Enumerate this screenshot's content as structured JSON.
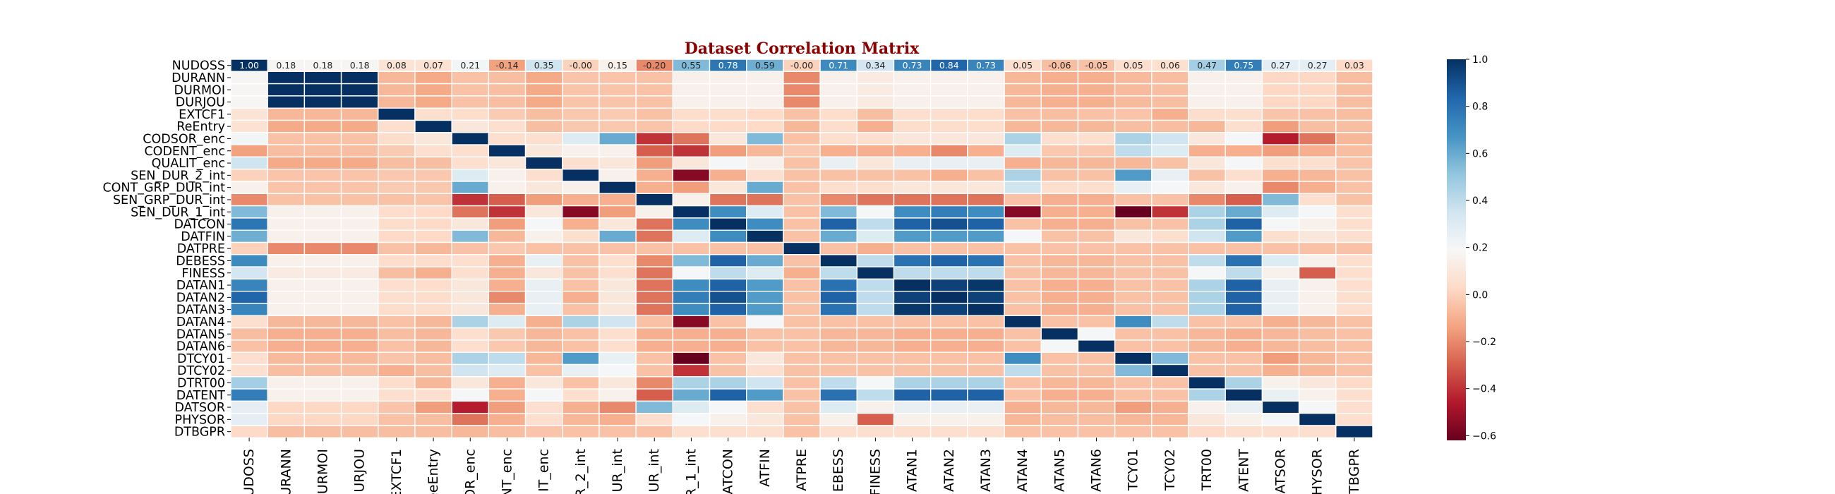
{
  "chart_data": {
    "type": "heatmap",
    "title": "Dataset Correlation Matrix",
    "title_color": "#8b0000",
    "colormap": "RdBu",
    "vmin": -0.62,
    "vmax": 1.0,
    "colorbar_ticks": [
      -0.6,
      -0.4,
      -0.2,
      0.0,
      0.2,
      0.4,
      0.6,
      0.8,
      1.0
    ],
    "colorbar_tick_labels": [
      "−0.6",
      "−0.4",
      "−0.2",
      "0.0",
      "0.2",
      "0.4",
      "0.6",
      "0.8",
      "1.0"
    ],
    "row_labels": [
      "NUDOSS",
      "DURANN",
      "DURMOI",
      "DURJOU",
      "EXTCF1",
      "ReEntry",
      "CODSOR_enc",
      "CODENT_enc",
      "QUALIT_enc",
      "SEN_DUR_2_int",
      "CONT_GRP_DUR_int",
      "SEN_GRP_DUR_int",
      "SEN_DUR_1_int",
      "DATCON",
      "DATFIN",
      "DATPRE",
      "DEBESS",
      "FINESS",
      "DATAN1",
      "DATAN2",
      "DATAN3",
      "DATAN4",
      "DATAN5",
      "DATAN6",
      "DTCY01",
      "DTCY02",
      "DTRT00",
      "DATENT",
      "DATSOR",
      "PHYSOR",
      "DTBGPR"
    ],
    "column_labels": [
      "UDOSS",
      "URANN",
      "URMOI",
      "URJOU",
      "EXTCF1",
      "eeEntry",
      "OR_enc",
      "NT_enc",
      "IT_enc",
      "R_2_int",
      "UR_int",
      "UR_int",
      "R_1_int",
      "ATCON",
      "ATFIN",
      "ATPRE",
      "EBESS",
      "FINESS",
      "ATAN1",
      "ATAN2",
      "ATAN3",
      "ATAN4",
      "ATAN5",
      "ATAN6",
      "TCY01",
      "TCY02",
      "TRT00",
      "ATENT",
      "ATSOR",
      "HYSOR",
      "TBGPR"
    ],
    "annotated_row": 0,
    "annotation_labels": [
      "1.00",
      "0.18",
      "0.18",
      "0.18",
      "0.08",
      "0.07",
      "0.21",
      "-0.14",
      "0.35",
      "-0.00",
      "0.15",
      "-0.20",
      "0.55",
      "0.78",
      "0.59",
      "-0.00",
      "0.71",
      "0.34",
      "0.73",
      "0.84",
      "0.73",
      "0.05",
      "-0.06",
      "-0.05",
      "0.05",
      "0.06",
      "0.47",
      "0.75",
      "0.27",
      "0.27",
      "0.03"
    ],
    "values": [
      [
        1.0,
        0.18,
        0.18,
        0.18,
        0.08,
        0.07,
        0.21,
        -0.14,
        0.35,
        -0.0,
        0.15,
        -0.2,
        0.55,
        0.78,
        0.59,
        -0.0,
        0.71,
        0.34,
        0.73,
        0.84,
        0.73,
        0.05,
        -0.06,
        -0.05,
        0.05,
        0.06,
        0.47,
        0.75,
        0.27,
        0.27,
        0.03
      ],
      [
        0.18,
        1.0,
        1.0,
        1.0,
        -0.08,
        -0.12,
        -0.05,
        -0.06,
        -0.12,
        -0.04,
        -0.04,
        -0.05,
        0.15,
        0.15,
        0.15,
        -0.2,
        0.15,
        0.12,
        0.15,
        0.15,
        0.15,
        -0.08,
        -0.1,
        -0.1,
        -0.07,
        -0.06,
        0.15,
        0.15,
        0.02,
        0.02,
        -0.06
      ],
      [
        0.18,
        1.0,
        1.0,
        1.0,
        -0.08,
        -0.12,
        -0.05,
        -0.06,
        -0.12,
        -0.04,
        -0.04,
        -0.05,
        0.15,
        0.15,
        0.15,
        -0.2,
        0.15,
        0.12,
        0.15,
        0.15,
        0.15,
        -0.08,
        -0.1,
        -0.1,
        -0.07,
        -0.06,
        0.15,
        0.15,
        0.02,
        0.02,
        -0.06
      ],
      [
        0.18,
        1.0,
        1.0,
        1.0,
        -0.08,
        -0.12,
        -0.05,
        -0.06,
        -0.12,
        -0.04,
        -0.04,
        -0.05,
        0.15,
        0.15,
        0.15,
        -0.2,
        0.15,
        0.12,
        0.15,
        0.15,
        0.15,
        -0.08,
        -0.1,
        -0.1,
        -0.07,
        -0.06,
        0.15,
        0.15,
        0.02,
        0.02,
        -0.06
      ],
      [
        0.08,
        -0.08,
        -0.08,
        -0.08,
        1.0,
        0.05,
        0.04,
        -0.02,
        -0.06,
        -0.03,
        -0.02,
        -0.05,
        0.04,
        0.04,
        0.03,
        -0.05,
        0.04,
        -0.06,
        0.05,
        0.05,
        0.04,
        -0.05,
        -0.06,
        -0.05,
        -0.04,
        -0.1,
        0.04,
        0.05,
        -0.04,
        -0.05,
        -0.06
      ],
      [
        0.07,
        -0.12,
        -0.12,
        -0.12,
        0.05,
        1.0,
        0.1,
        0.05,
        -0.06,
        -0.03,
        -0.03,
        -0.04,
        0.03,
        0.03,
        0.03,
        -0.08,
        0.04,
        -0.1,
        0.04,
        0.04,
        0.04,
        -0.08,
        -0.08,
        -0.08,
        -0.06,
        -0.06,
        -0.08,
        0.05,
        -0.15,
        -0.06,
        -0.06
      ],
      [
        0.21,
        -0.05,
        -0.05,
        -0.05,
        0.04,
        0.1,
        1.0,
        0.05,
        0.05,
        0.3,
        0.6,
        -0.4,
        -0.25,
        0.1,
        0.55,
        -0.05,
        0.05,
        0.05,
        0.1,
        0.1,
        0.1,
        0.45,
        0.05,
        0.05,
        0.45,
        0.35,
        0.1,
        0.2,
        -0.45,
        -0.25,
        -0.08
      ],
      [
        -0.14,
        -0.06,
        -0.06,
        -0.06,
        -0.02,
        0.05,
        0.05,
        1.0,
        0.1,
        0.15,
        0.15,
        -0.3,
        -0.4,
        -0.15,
        -0.08,
        -0.03,
        -0.1,
        -0.1,
        -0.1,
        -0.2,
        -0.1,
        0.3,
        -0.03,
        -0.03,
        0.4,
        0.3,
        -0.1,
        -0.1,
        -0.15,
        -0.1,
        -0.06
      ],
      [
        0.35,
        -0.12,
        -0.12,
        -0.12,
        -0.06,
        -0.06,
        0.05,
        0.1,
        1.0,
        0.05,
        0.1,
        -0.15,
        0.1,
        0.2,
        0.15,
        -0.05,
        0.25,
        0.1,
        0.25,
        0.25,
        0.25,
        -0.1,
        -0.08,
        -0.08,
        -0.08,
        -0.05,
        0.1,
        0.2,
        0.05,
        0.05,
        -0.04
      ],
      [
        -0.0,
        -0.04,
        -0.04,
        -0.04,
        -0.03,
        -0.03,
        0.3,
        0.15,
        0.05,
        1.0,
        0.15,
        -0.1,
        -0.55,
        -0.1,
        0.05,
        -0.05,
        -0.05,
        -0.05,
        -0.05,
        -0.1,
        -0.05,
        0.45,
        -0.05,
        -0.05,
        0.65,
        0.25,
        -0.05,
        0.05,
        -0.1,
        -0.08,
        -0.05
      ],
      [
        0.15,
        -0.04,
        -0.04,
        -0.04,
        -0.02,
        -0.03,
        0.6,
        0.15,
        0.1,
        0.15,
        1.0,
        -0.1,
        -0.15,
        0.1,
        0.6,
        -0.05,
        0.05,
        0.05,
        0.1,
        0.1,
        0.1,
        0.35,
        0.05,
        0.05,
        0.25,
        0.2,
        0.1,
        0.15,
        -0.2,
        -0.1,
        -0.05
      ],
      [
        -0.2,
        -0.05,
        -0.05,
        -0.05,
        -0.05,
        -0.04,
        -0.4,
        -0.3,
        -0.15,
        -0.1,
        -0.1,
        1.0,
        0.15,
        -0.25,
        -0.25,
        -0.05,
        -0.2,
        -0.25,
        -0.25,
        -0.25,
        -0.25,
        -0.05,
        -0.1,
        -0.1,
        -0.05,
        -0.05,
        -0.2,
        -0.3,
        0.55,
        0.05,
        -0.05
      ],
      [
        0.55,
        0.15,
        0.15,
        0.15,
        0.04,
        0.03,
        -0.25,
        -0.4,
        0.1,
        -0.55,
        -0.15,
        0.15,
        1.0,
        0.7,
        0.3,
        -0.05,
        0.55,
        0.2,
        0.7,
        0.75,
        0.7,
        -0.55,
        -0.1,
        -0.1,
        -0.62,
        -0.4,
        0.45,
        0.6,
        0.3,
        0.2,
        0.05
      ],
      [
        0.78,
        0.15,
        0.15,
        0.15,
        0.04,
        0.03,
        0.1,
        -0.15,
        0.2,
        -0.1,
        0.1,
        -0.25,
        0.7,
        1.0,
        0.7,
        -0.05,
        0.85,
        0.4,
        0.85,
        0.9,
        0.85,
        -0.05,
        -0.1,
        -0.1,
        -0.05,
        -0.05,
        0.45,
        0.85,
        0.2,
        0.15,
        0.05
      ],
      [
        0.59,
        0.15,
        0.15,
        0.15,
        0.03,
        0.03,
        0.55,
        -0.08,
        0.15,
        0.05,
        0.6,
        -0.25,
        0.3,
        0.7,
        1.0,
        -0.05,
        0.6,
        0.3,
        0.65,
        0.65,
        0.65,
        0.2,
        -0.05,
        -0.05,
        0.1,
        0.05,
        0.35,
        0.65,
        0.05,
        0.1,
        0.05
      ],
      [
        -0.0,
        -0.2,
        -0.2,
        -0.2,
        -0.05,
        -0.08,
        -0.05,
        -0.03,
        -0.05,
        -0.05,
        -0.05,
        -0.05,
        -0.05,
        -0.05,
        -0.05,
        1.0,
        -0.05,
        -0.1,
        -0.05,
        -0.05,
        -0.05,
        -0.05,
        -0.05,
        -0.05,
        -0.05,
        -0.05,
        -0.05,
        -0.05,
        -0.05,
        -0.05,
        -0.05
      ],
      [
        0.71,
        0.15,
        0.15,
        0.15,
        0.04,
        0.04,
        0.05,
        -0.1,
        0.25,
        -0.05,
        0.05,
        -0.2,
        0.55,
        0.85,
        0.6,
        -0.05,
        1.0,
        0.4,
        0.8,
        0.85,
        0.8,
        -0.05,
        -0.08,
        -0.08,
        -0.05,
        -0.05,
        0.4,
        0.8,
        0.3,
        0.15,
        0.05
      ],
      [
        0.34,
        0.12,
        0.12,
        0.12,
        -0.06,
        -0.1,
        0.05,
        -0.1,
        0.1,
        -0.05,
        0.05,
        -0.25,
        0.2,
        0.4,
        0.3,
        -0.1,
        0.4,
        1.0,
        0.4,
        0.4,
        0.4,
        -0.05,
        -0.08,
        -0.08,
        -0.05,
        -0.05,
        0.2,
        0.4,
        0.15,
        -0.3,
        0.05
      ],
      [
        0.73,
        0.15,
        0.15,
        0.15,
        0.05,
        0.04,
        0.1,
        -0.1,
        0.25,
        -0.05,
        0.1,
        -0.25,
        0.7,
        0.85,
        0.65,
        -0.05,
        0.8,
        0.4,
        1.0,
        0.95,
        0.98,
        -0.05,
        -0.1,
        -0.1,
        -0.05,
        -0.05,
        0.45,
        0.85,
        0.25,
        0.15,
        0.05
      ],
      [
        0.84,
        0.15,
        0.15,
        0.15,
        0.05,
        0.04,
        0.1,
        -0.2,
        0.25,
        -0.1,
        0.1,
        -0.25,
        0.75,
        0.9,
        0.65,
        -0.05,
        0.85,
        0.4,
        0.95,
        1.0,
        0.95,
        -0.05,
        -0.1,
        -0.1,
        -0.05,
        -0.05,
        0.45,
        0.85,
        0.25,
        0.15,
        0.05
      ],
      [
        0.73,
        0.15,
        0.15,
        0.15,
        0.04,
        0.04,
        0.1,
        -0.1,
        0.25,
        -0.05,
        0.1,
        -0.25,
        0.7,
        0.85,
        0.65,
        -0.05,
        0.8,
        0.4,
        0.98,
        0.95,
        1.0,
        -0.05,
        -0.1,
        -0.1,
        -0.05,
        -0.05,
        0.45,
        0.85,
        0.25,
        0.15,
        0.05
      ],
      [
        0.05,
        -0.08,
        -0.08,
        -0.08,
        -0.05,
        -0.08,
        0.45,
        0.3,
        -0.1,
        0.45,
        0.35,
        -0.05,
        -0.55,
        -0.05,
        0.2,
        -0.05,
        -0.05,
        -0.05,
        -0.05,
        -0.05,
        -0.05,
        1.0,
        -0.05,
        -0.05,
        0.7,
        0.4,
        -0.05,
        -0.05,
        -0.1,
        -0.08,
        -0.05
      ],
      [
        -0.06,
        -0.1,
        -0.1,
        -0.1,
        -0.06,
        -0.08,
        0.05,
        -0.03,
        -0.08,
        -0.05,
        0.05,
        -0.1,
        -0.1,
        -0.1,
        -0.05,
        -0.05,
        -0.08,
        -0.08,
        -0.1,
        -0.1,
        -0.1,
        -0.05,
        1.0,
        0.2,
        -0.05,
        -0.05,
        -0.08,
        -0.1,
        -0.08,
        -0.06,
        -0.05
      ],
      [
        -0.05,
        -0.1,
        -0.1,
        -0.1,
        -0.05,
        -0.08,
        0.05,
        -0.03,
        -0.08,
        -0.05,
        0.05,
        -0.1,
        -0.1,
        -0.1,
        -0.05,
        -0.05,
        -0.08,
        -0.08,
        -0.1,
        -0.1,
        -0.1,
        -0.05,
        0.2,
        1.0,
        -0.05,
        -0.05,
        -0.08,
        -0.1,
        -0.08,
        -0.06,
        -0.05
      ],
      [
        0.05,
        -0.07,
        -0.07,
        -0.07,
        -0.04,
        -0.06,
        0.45,
        0.4,
        -0.08,
        0.65,
        0.25,
        -0.05,
        -0.62,
        -0.05,
        0.1,
        -0.05,
        -0.05,
        -0.05,
        -0.05,
        -0.05,
        -0.05,
        0.7,
        -0.05,
        -0.05,
        1.0,
        0.55,
        -0.05,
        -0.05,
        -0.15,
        -0.08,
        -0.05
      ],
      [
        0.06,
        -0.06,
        -0.06,
        -0.06,
        -0.1,
        -0.06,
        0.35,
        0.3,
        -0.05,
        0.25,
        0.2,
        -0.05,
        -0.4,
        -0.05,
        0.05,
        -0.05,
        -0.05,
        -0.05,
        -0.05,
        -0.05,
        -0.05,
        0.4,
        -0.05,
        -0.05,
        0.55,
        1.0,
        -0.05,
        -0.05,
        -0.1,
        -0.08,
        -0.05
      ],
      [
        0.47,
        0.15,
        0.15,
        0.15,
        0.04,
        -0.08,
        0.1,
        -0.1,
        0.1,
        -0.05,
        0.1,
        -0.2,
        0.45,
        0.45,
        0.35,
        -0.05,
        0.4,
        0.2,
        0.45,
        0.45,
        0.45,
        -0.05,
        -0.08,
        -0.08,
        -0.05,
        -0.05,
        1.0,
        0.45,
        0.15,
        0.1,
        0.03
      ],
      [
        0.75,
        0.15,
        0.15,
        0.15,
        0.05,
        0.05,
        0.2,
        -0.1,
        0.2,
        0.05,
        0.15,
        -0.3,
        0.6,
        0.85,
        0.65,
        -0.05,
        0.8,
        0.4,
        0.85,
        0.85,
        0.85,
        -0.05,
        -0.1,
        -0.1,
        -0.05,
        -0.05,
        0.45,
        1.0,
        0.25,
        0.15,
        0.05
      ],
      [
        0.27,
        0.02,
        0.02,
        0.02,
        -0.04,
        -0.15,
        -0.45,
        -0.15,
        0.05,
        -0.1,
        -0.2,
        0.55,
        0.3,
        0.2,
        0.05,
        -0.05,
        0.3,
        0.15,
        0.25,
        0.25,
        0.25,
        -0.1,
        -0.08,
        -0.08,
        -0.15,
        -0.1,
        0.15,
        0.25,
        1.0,
        0.2,
        0.05
      ],
      [
        0.27,
        0.02,
        0.02,
        0.02,
        -0.05,
        -0.06,
        -0.25,
        -0.1,
        0.05,
        -0.08,
        -0.1,
        0.05,
        0.2,
        0.15,
        0.1,
        -0.05,
        0.15,
        -0.3,
        0.15,
        0.15,
        0.15,
        -0.08,
        -0.06,
        -0.06,
        -0.08,
        -0.08,
        0.1,
        0.15,
        0.2,
        1.0,
        0.05
      ],
      [
        0.03,
        -0.06,
        -0.06,
        -0.06,
        -0.06,
        -0.06,
        -0.08,
        -0.06,
        -0.04,
        -0.05,
        -0.05,
        -0.05,
        0.05,
        0.05,
        0.05,
        -0.05,
        0.05,
        0.05,
        0.05,
        0.05,
        0.05,
        -0.05,
        -0.05,
        -0.05,
        -0.05,
        -0.05,
        0.03,
        0.05,
        0.05,
        0.05,
        1.0
      ]
    ]
  }
}
